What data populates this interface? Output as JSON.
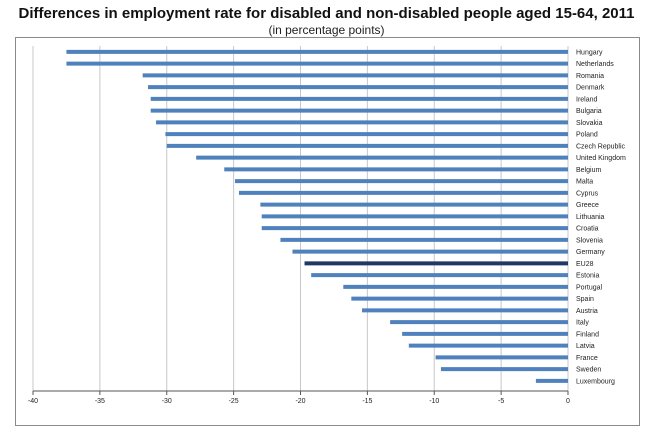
{
  "chart_data": {
    "type": "bar",
    "orientation": "horizontal",
    "title": "Differences in employment rate for disabled and non-disabled people aged 15-64, 2011",
    "subtitle": "(in percentage points)",
    "xlabel": "",
    "ylabel": "",
    "xlim": [
      -40,
      0
    ],
    "xticks": [
      -40,
      -35,
      -30,
      -25,
      -20,
      -15,
      -10,
      -5,
      0
    ],
    "grid": true,
    "legend": "none",
    "colors": {
      "bar": "#4f81bd",
      "highlight": "#1f3864",
      "grid": "#c8c8c8",
      "axis": "#555555"
    },
    "highlight_category": "EU28",
    "categories": [
      "Hungary",
      "Netherlands",
      "Romania",
      "Denmark",
      "Ireland",
      "Bulgaria",
      "Slovakia",
      "Poland",
      "Czech Republic",
      "United Kingdom",
      "Belgium",
      "Malta",
      "Cyprus",
      "Greece",
      "Lithuania",
      "Croatia",
      "Slovenia",
      "Germany",
      "EU28",
      "Estonia",
      "Portugal",
      "Spain",
      "Austria",
      "Italy",
      "Finland",
      "Latvia",
      "France",
      "Sweden",
      "Luxembourg"
    ],
    "values": [
      -37.5,
      -37.5,
      -31.8,
      -31.4,
      -31.2,
      -31.2,
      -30.8,
      -30.1,
      -30.0,
      -27.8,
      -25.7,
      -24.9,
      -24.6,
      -23.0,
      -22.9,
      -22.9,
      -21.5,
      -20.6,
      -19.7,
      -19.2,
      -16.8,
      -16.2,
      -15.4,
      -13.3,
      -12.4,
      -11.9,
      -9.9,
      -9.5,
      -2.4
    ]
  }
}
